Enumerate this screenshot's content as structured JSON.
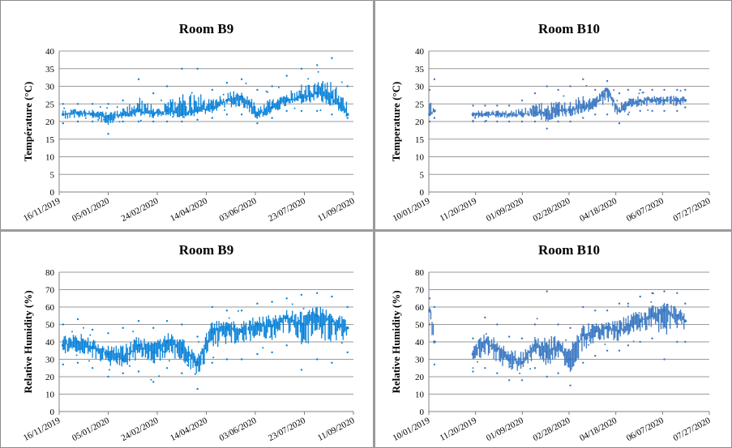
{
  "colors": {
    "b9": "#0a82d8",
    "b10": "#3a78c2",
    "grid": "#9a9a9a"
  },
  "chart_data": [
    {
      "type": "scatter",
      "title": "Room B9",
      "ylabel": "Température (°C)",
      "xlabel": "",
      "ylim": [
        0,
        40
      ],
      "yticks": [
        "0",
        "5",
        "10",
        "15",
        "20",
        "25",
        "30",
        "35",
        "40"
      ],
      "xticks": [
        "16/11/2019",
        "05/01/2020",
        "24/02/2020",
        "14/04/2020",
        "03/06/2020",
        "23/07/2020",
        "11/09/2020"
      ],
      "grid": true,
      "series": [
        {
          "x": [
            "2019-11-20",
            "2019-12-05",
            "2019-12-20",
            "2020-01-05",
            "2020-01-20",
            "2020-02-05",
            "2020-02-20",
            "2020-03-05",
            "2020-03-20",
            "2020-04-05",
            "2020-04-20",
            "2020-05-05",
            "2020-05-20",
            "2020-06-05",
            "2020-06-20",
            "2020-07-05",
            "2020-07-20",
            "2020-08-05",
            "2020-08-20",
            "2020-09-05"
          ],
          "values": [
            22,
            22.5,
            22,
            21.5,
            22,
            23,
            22,
            23,
            22,
            23,
            24,
            26,
            27,
            22,
            24,
            26,
            27,
            28,
            27,
            22
          ],
          "lower": [
            19.5,
            20,
            20,
            16.5,
            20,
            20,
            20,
            20,
            20,
            20.5,
            21,
            22,
            22,
            19.5,
            21,
            23,
            23,
            23,
            22,
            21
          ],
          "upper": [
            25,
            25,
            25,
            25,
            26,
            32,
            28,
            30,
            35,
            35,
            29,
            31,
            32,
            29,
            30,
            33,
            35,
            36,
            38,
            30
          ]
        }
      ]
    },
    {
      "type": "scatter",
      "title": "Room B10",
      "ylabel": "Temperature (°C)",
      "xlabel": "",
      "ylim": [
        0,
        40
      ],
      "yticks": [
        "0",
        "5",
        "10",
        "15",
        "20",
        "25",
        "30",
        "35",
        "40"
      ],
      "xticks": [
        "10/01/2019",
        "11/20/2019",
        "01/09/2020",
        "02/28/2020",
        "04/18/2020",
        "06/07/2020",
        "07/27/2020"
      ],
      "grid": true,
      "series": [
        {
          "x": [
            "2019-10-02",
            "2019-10-08",
            "2019-11-25",
            "2019-12-10",
            "2019-12-25",
            "2020-01-09",
            "2020-01-25",
            "2020-02-10",
            "2020-02-25",
            "2020-03-10",
            "2020-03-25",
            "2020-04-10",
            "2020-04-25",
            "2020-05-10",
            "2020-05-25",
            "2020-06-05",
            "2020-06-20",
            "2020-07-05",
            "2020-07-20",
            "2020-08-05",
            "2020-08-15"
          ],
          "values": [
            22,
            23,
            22,
            22,
            22,
            22,
            22,
            22.5,
            22,
            23,
            23,
            24,
            25,
            29,
            23,
            25,
            26,
            26,
            26,
            26,
            26
          ],
          "lower": [
            20,
            21,
            20,
            20,
            20,
            20,
            20,
            20,
            18,
            20,
            20,
            21,
            22,
            22,
            19.5,
            22,
            23,
            23,
            23,
            23,
            24
          ],
          "upper": [
            29,
            32,
            24.5,
            24.5,
            24.5,
            24.5,
            26,
            28,
            30,
            29,
            30,
            32,
            29,
            31.5,
            28,
            29,
            29,
            29,
            29,
            29,
            29
          ]
        }
      ]
    },
    {
      "type": "scatter",
      "title": "Room B9",
      "ylabel": "Relative Humidity (%)",
      "xlabel": "",
      "ylim": [
        0,
        80
      ],
      "yticks": [
        "0",
        "10",
        "20",
        "30",
        "40",
        "50",
        "60",
        "70",
        "80"
      ],
      "xticks": [
        "16/11/2019",
        "05/01/2020",
        "24/02/2020",
        "14/04/2020",
        "03/06/2020",
        "23/07/2020",
        "11/09/2020"
      ],
      "grid": true,
      "series": [
        {
          "x": [
            "2019-11-20",
            "2019-12-05",
            "2019-12-20",
            "2020-01-05",
            "2020-01-20",
            "2020-02-05",
            "2020-02-20",
            "2020-03-05",
            "2020-03-20",
            "2020-04-05",
            "2020-04-20",
            "2020-05-05",
            "2020-05-20",
            "2020-06-05",
            "2020-06-20",
            "2020-07-05",
            "2020-07-20",
            "2020-08-05",
            "2020-08-20",
            "2020-09-05"
          ],
          "values": [
            38,
            40,
            37,
            33,
            30,
            38,
            34,
            40,
            36,
            28,
            46,
            48,
            46,
            50,
            49,
            54,
            50,
            55,
            52,
            48
          ],
          "lower": [
            27,
            28,
            25,
            20,
            22,
            23,
            17,
            25,
            22,
            13,
            28,
            30,
            30,
            33,
            34,
            38,
            24,
            30,
            28,
            34
          ],
          "upper": [
            50,
            53,
            47,
            45,
            48,
            52,
            48,
            52,
            50,
            43,
            60,
            58,
            58,
            62,
            63,
            65,
            67,
            68,
            66,
            60
          ]
        }
      ]
    },
    {
      "type": "scatter",
      "title": "Room B10",
      "ylabel": "Relative Humidity (%)",
      "xlabel": "",
      "ylim": [
        0,
        80
      ],
      "yticks": [
        "0",
        "10",
        "20",
        "30",
        "40",
        "50",
        "60",
        "70",
        "80"
      ],
      "xticks": [
        "10/01/2019",
        "11/20/2019",
        "01/09/2020",
        "02/28/2020",
        "04/18/2020",
        "06/07/2020",
        "07/27/2020"
      ],
      "grid": true,
      "series": [
        {
          "x": [
            "2019-10-02",
            "2019-10-08",
            "2019-11-25",
            "2019-12-10",
            "2019-12-25",
            "2020-01-09",
            "2020-01-25",
            "2020-02-10",
            "2020-02-25",
            "2020-03-10",
            "2020-03-25",
            "2020-04-10",
            "2020-04-25",
            "2020-05-10",
            "2020-05-25",
            "2020-06-05",
            "2020-06-20",
            "2020-07-05",
            "2020-07-20",
            "2020-08-05",
            "2020-08-15"
          ],
          "values": [
            58,
            40,
            33,
            40,
            36,
            30,
            28,
            38,
            34,
            38,
            30,
            44,
            46,
            48,
            46,
            50,
            52,
            55,
            58,
            55,
            52
          ],
          "lower": [
            50,
            27,
            23,
            25,
            22,
            18,
            18,
            25,
            20,
            22,
            15,
            28,
            32,
            35,
            35,
            38,
            40,
            42,
            30,
            40,
            40
          ],
          "upper": [
            65,
            60,
            42,
            54,
            50,
            43,
            42,
            50,
            69,
            50,
            48,
            60,
            58,
            58,
            62,
            62,
            66,
            68,
            69,
            68,
            62
          ]
        }
      ]
    }
  ]
}
